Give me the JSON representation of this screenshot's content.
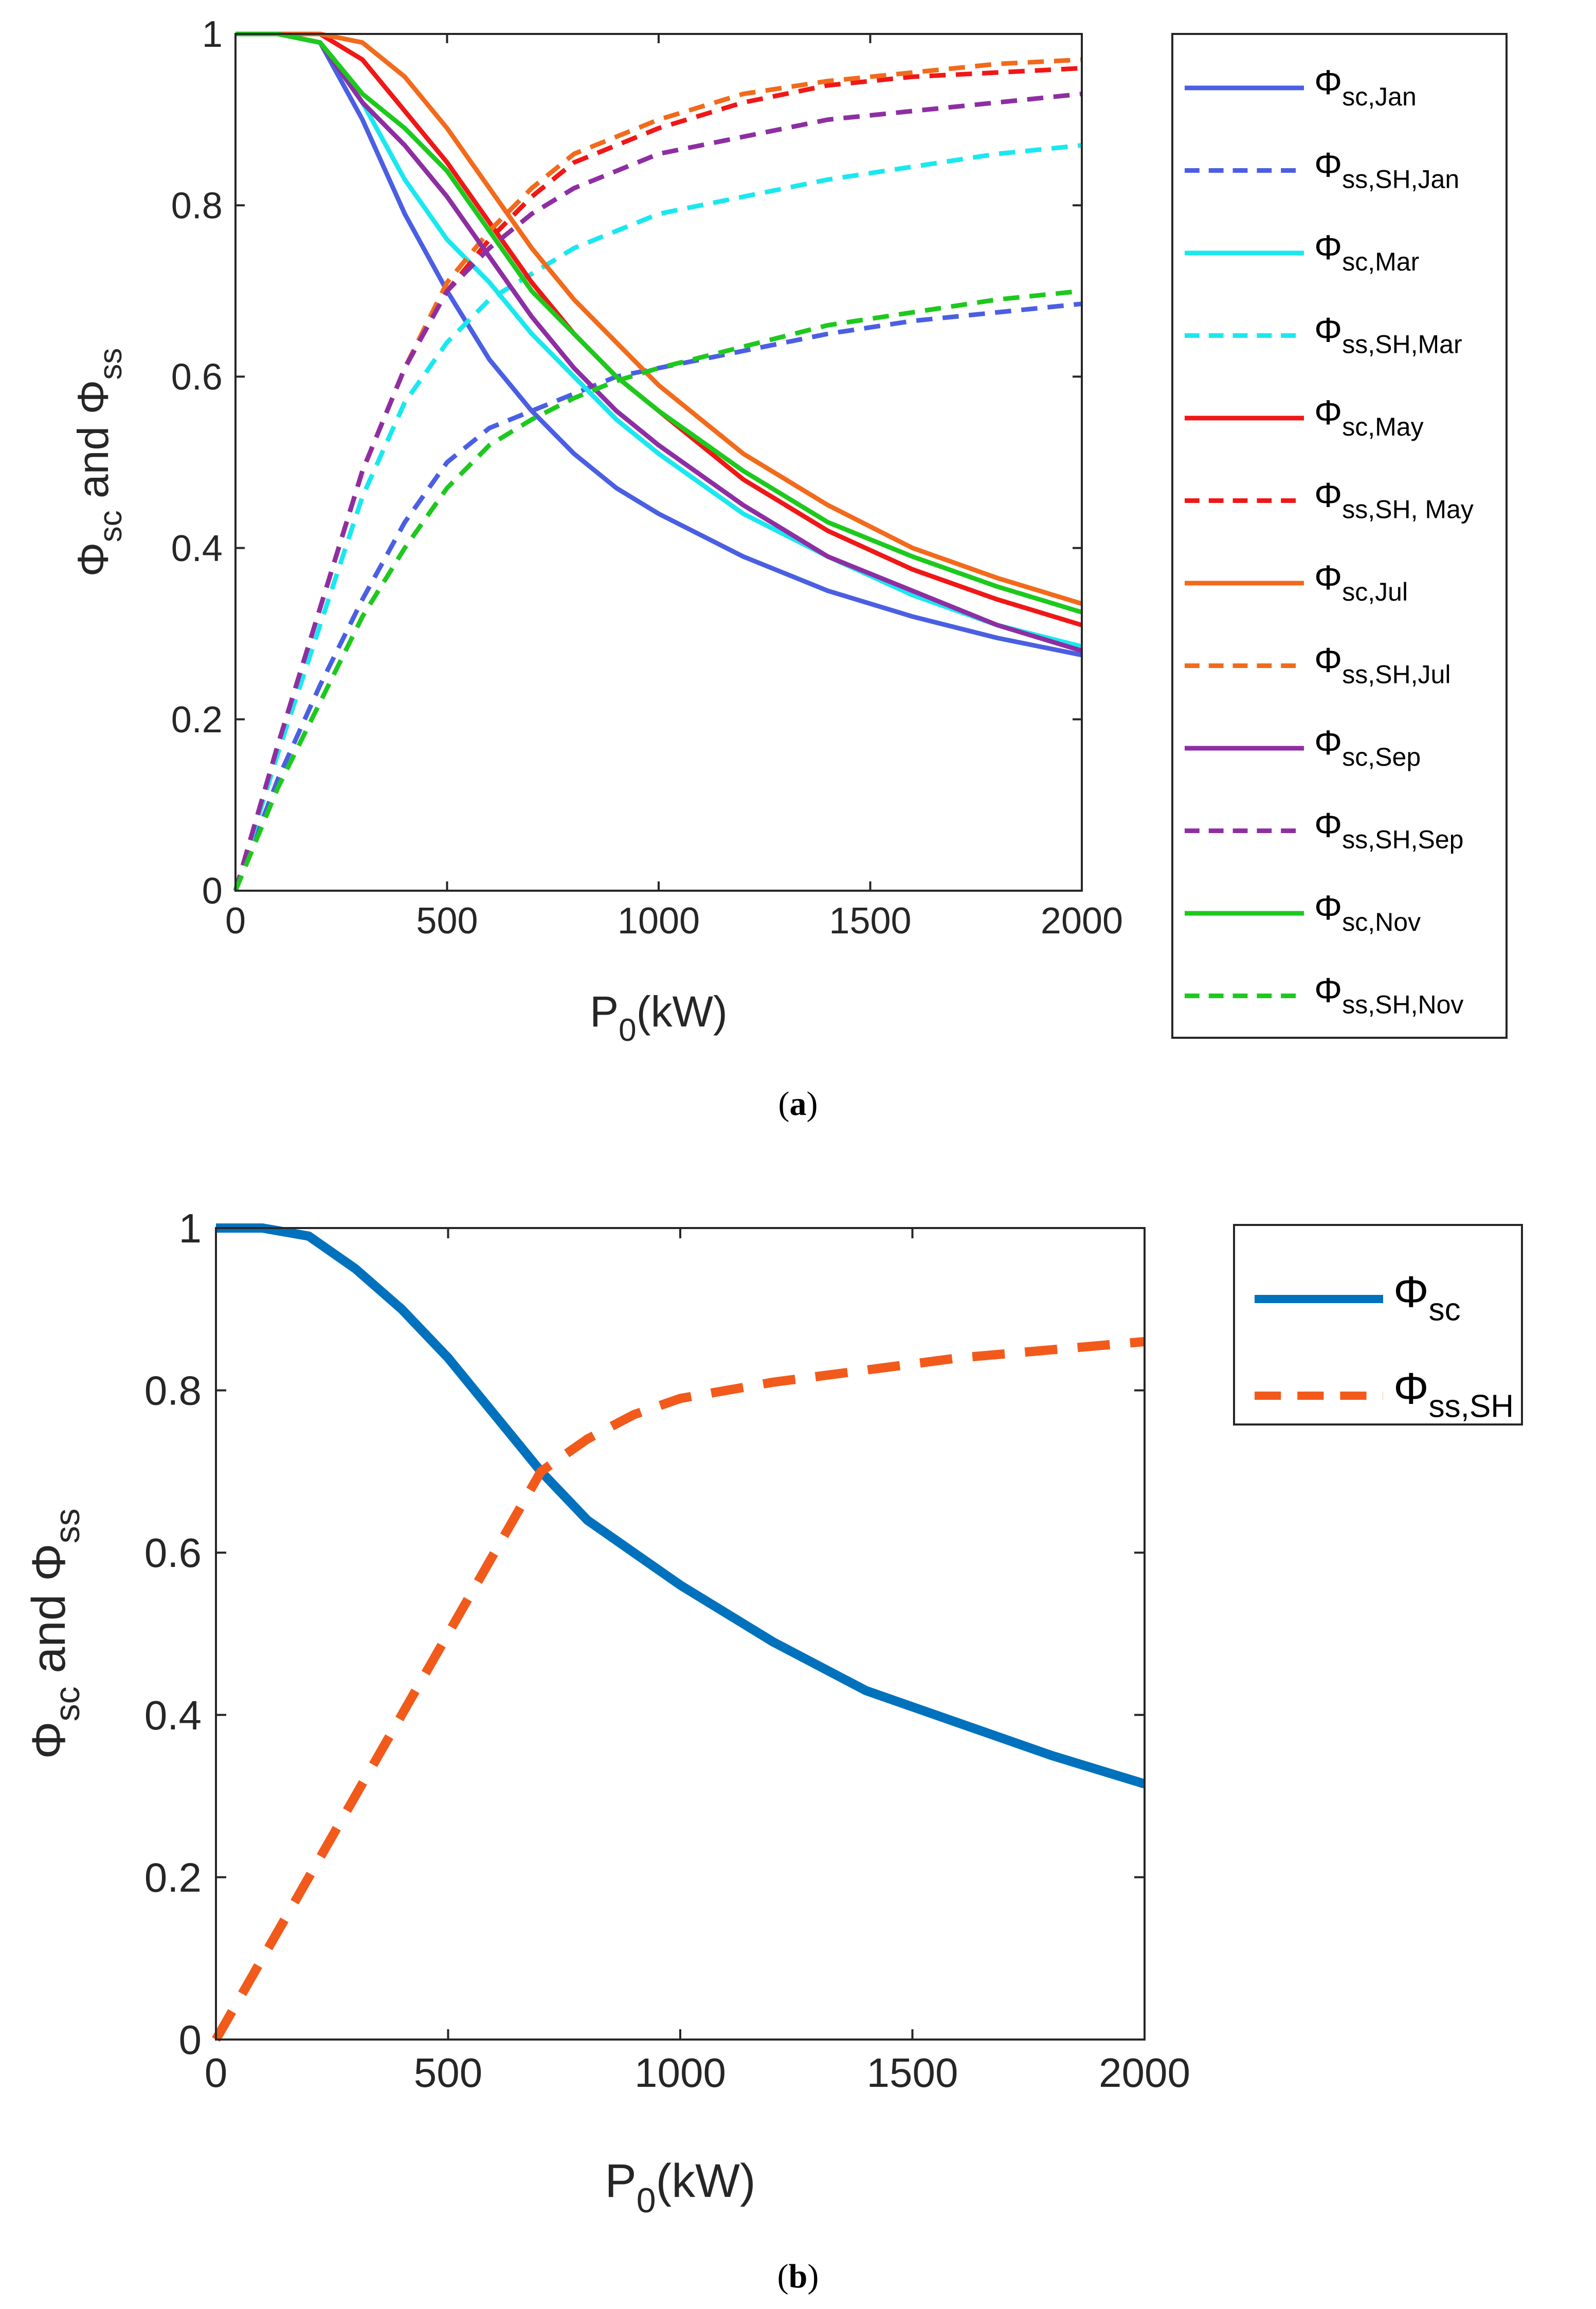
{
  "chart_data": [
    {
      "id": "a",
      "type": "line",
      "caption": "a",
      "xlabel": "P",
      "xlabel_sub": "0",
      "xlabel_unit": "(kW)",
      "ylabel": {
        "p1": "Φ",
        "s1": "sc",
        "mid": " and Φ",
        "s2": "ss"
      },
      "xlim": [
        0,
        2000
      ],
      "ylim": [
        0,
        1
      ],
      "xticks": [
        "0",
        "500",
        "1000",
        "1500",
        "2000"
      ],
      "yticks": [
        "0",
        "0.2",
        "0.4",
        "0.6",
        "0.8",
        "1"
      ],
      "xtick_values": [
        0,
        500,
        1000,
        1500,
        2000
      ],
      "ytick_values": [
        0,
        0.2,
        0.4,
        0.6,
        0.8,
        1
      ],
      "grid": false,
      "legend_position": "outside-right",
      "series": [
        {
          "name": "Φsc,Jan",
          "label_sub": "sc,Jan",
          "color": "#4A5FE3",
          "dash": "solid",
          "x": [
            0,
            100,
            200,
            300,
            400,
            500,
            600,
            700,
            800,
            900,
            1000,
            1200,
            1400,
            1600,
            1800,
            2000
          ],
          "y": [
            1.0,
            1.0,
            0.99,
            0.9,
            0.79,
            0.7,
            0.62,
            0.56,
            0.51,
            0.47,
            0.44,
            0.39,
            0.35,
            0.32,
            0.295,
            0.275
          ]
        },
        {
          "name": "Φss,SH,Jan",
          "label_sub": "ss,SH,Jan",
          "color": "#4A5FE3",
          "dash": "dashed",
          "x": [
            0,
            100,
            200,
            300,
            400,
            500,
            600,
            700,
            800,
            900,
            1000,
            1200,
            1400,
            1600,
            1800,
            2000
          ],
          "y": [
            0.0,
            0.13,
            0.24,
            0.34,
            0.43,
            0.5,
            0.54,
            0.56,
            0.58,
            0.6,
            0.61,
            0.63,
            0.65,
            0.665,
            0.675,
            0.685
          ]
        },
        {
          "name": "Φsc,Mar",
          "label_sub": "sc,Mar",
          "color": "#19E8F0",
          "dash": "solid",
          "x": [
            0,
            100,
            200,
            300,
            400,
            500,
            600,
            700,
            800,
            900,
            1000,
            1200,
            1400,
            1600,
            1800,
            2000
          ],
          "y": [
            1.0,
            1.0,
            0.99,
            0.92,
            0.83,
            0.76,
            0.71,
            0.65,
            0.6,
            0.55,
            0.51,
            0.44,
            0.39,
            0.345,
            0.31,
            0.285
          ]
        },
        {
          "name": "Φss,SH,Mar",
          "label_sub": "ss,SH,Mar",
          "color": "#19E8F0",
          "dash": "dashed",
          "x": [
            0,
            100,
            200,
            300,
            400,
            500,
            600,
            700,
            800,
            900,
            1000,
            1200,
            1400,
            1600,
            1800,
            2000
          ],
          "y": [
            0.0,
            0.16,
            0.31,
            0.46,
            0.57,
            0.64,
            0.69,
            0.72,
            0.75,
            0.77,
            0.79,
            0.81,
            0.83,
            0.845,
            0.86,
            0.87
          ]
        },
        {
          "name": "Φsc,May",
          "label_sub": "sc,May",
          "color": "#F01717",
          "dash": "solid",
          "x": [
            0,
            100,
            200,
            300,
            400,
            500,
            600,
            700,
            800,
            900,
            1000,
            1200,
            1400,
            1600,
            1800,
            2000
          ],
          "y": [
            1.0,
            1.0,
            1.0,
            0.97,
            0.91,
            0.85,
            0.78,
            0.71,
            0.65,
            0.6,
            0.56,
            0.48,
            0.42,
            0.375,
            0.34,
            0.31
          ]
        },
        {
          "name": "Φss,SH, May",
          "label_sub": "ss,SH, May",
          "color": "#F01717",
          "dash": "dashed",
          "x": [
            0,
            100,
            200,
            300,
            400,
            500,
            600,
            700,
            800,
            900,
            1000,
            1200,
            1400,
            1600,
            1800,
            2000
          ],
          "y": [
            0.0,
            0.17,
            0.33,
            0.49,
            0.61,
            0.7,
            0.76,
            0.81,
            0.85,
            0.87,
            0.89,
            0.92,
            0.94,
            0.95,
            0.955,
            0.96
          ]
        },
        {
          "name": "Φsc,Jul",
          "label_sub": "sc,Jul",
          "color": "#F26A1B",
          "dash": "solid",
          "x": [
            0,
            100,
            200,
            300,
            400,
            500,
            600,
            700,
            800,
            900,
            1000,
            1200,
            1400,
            1600,
            1800,
            2000
          ],
          "y": [
            1.0,
            1.0,
            1.0,
            0.99,
            0.95,
            0.89,
            0.82,
            0.75,
            0.69,
            0.64,
            0.59,
            0.51,
            0.45,
            0.4,
            0.365,
            0.335
          ]
        },
        {
          "name": "Φss,SH,Jul",
          "label_sub": "ss,SH,Jul",
          "color": "#F26A1B",
          "dash": "dashed",
          "x": [
            0,
            100,
            200,
            300,
            400,
            500,
            600,
            700,
            800,
            900,
            1000,
            1200,
            1400,
            1600,
            1800,
            2000
          ],
          "y": [
            0.0,
            0.17,
            0.33,
            0.49,
            0.61,
            0.71,
            0.77,
            0.82,
            0.86,
            0.88,
            0.9,
            0.93,
            0.945,
            0.955,
            0.965,
            0.97
          ]
        },
        {
          "name": "Φsc,Sep",
          "label_sub": "sc,Sep",
          "color": "#8E2EA3",
          "dash": "solid",
          "x": [
            0,
            100,
            200,
            300,
            400,
            500,
            600,
            700,
            800,
            900,
            1000,
            1200,
            1400,
            1600,
            1800,
            2000
          ],
          "y": [
            1.0,
            1.0,
            0.99,
            0.92,
            0.87,
            0.81,
            0.74,
            0.67,
            0.61,
            0.56,
            0.52,
            0.45,
            0.39,
            0.35,
            0.31,
            0.28
          ]
        },
        {
          "name": "Φss,SH,Sep",
          "label_sub": "ss,SH,Sep",
          "color": "#8E2EA3",
          "dash": "dashed",
          "x": [
            0,
            100,
            200,
            300,
            400,
            500,
            600,
            700,
            800,
            900,
            1000,
            1200,
            1400,
            1600,
            1800,
            2000
          ],
          "y": [
            0.0,
            0.17,
            0.33,
            0.49,
            0.61,
            0.7,
            0.75,
            0.79,
            0.82,
            0.84,
            0.86,
            0.88,
            0.9,
            0.91,
            0.92,
            0.93
          ]
        },
        {
          "name": "Φsc,Nov",
          "label_sub": "sc,Nov",
          "color": "#1DC91D",
          "dash": "solid",
          "x": [
            0,
            100,
            200,
            300,
            400,
            500,
            600,
            700,
            800,
            900,
            1000,
            1200,
            1400,
            1600,
            1800,
            2000
          ],
          "y": [
            1.0,
            1.0,
            0.99,
            0.93,
            0.89,
            0.84,
            0.77,
            0.7,
            0.65,
            0.6,
            0.56,
            0.49,
            0.43,
            0.39,
            0.355,
            0.325
          ]
        },
        {
          "name": "Φss,SH,Nov",
          "label_sub": "ss,SH,Nov",
          "color": "#1DC91D",
          "dash": "dashed",
          "x": [
            0,
            100,
            200,
            300,
            400,
            500,
            600,
            700,
            800,
            900,
            1000,
            1200,
            1400,
            1600,
            1800,
            2000
          ],
          "y": [
            0.0,
            0.12,
            0.22,
            0.32,
            0.4,
            0.47,
            0.52,
            0.55,
            0.575,
            0.595,
            0.61,
            0.635,
            0.66,
            0.675,
            0.69,
            0.7
          ]
        }
      ]
    },
    {
      "id": "b",
      "type": "line",
      "caption": "b",
      "xlabel": "P",
      "xlabel_sub": "0",
      "xlabel_unit": "(kW)",
      "ylabel": {
        "p1": "Φ",
        "s1": "sc",
        "mid": " and Φ",
        "s2": "ss"
      },
      "xlim": [
        0,
        2000
      ],
      "ylim": [
        0,
        1
      ],
      "xticks": [
        "0",
        "500",
        "1000",
        "1500",
        "2000"
      ],
      "yticks": [
        "0",
        "0.2",
        "0.4",
        "0.6",
        "0.8",
        "1"
      ],
      "xtick_values": [
        0,
        500,
        1000,
        1500,
        2000
      ],
      "ytick_values": [
        0,
        0.2,
        0.4,
        0.6,
        0.8,
        1
      ],
      "grid": false,
      "legend_position": "outside-right",
      "series": [
        {
          "name": "Φsc",
          "label_sub": "sc",
          "color": "#0072BD",
          "dash": "solid",
          "x": [
            0,
            100,
            200,
            300,
            400,
            500,
            600,
            700,
            800,
            900,
            1000,
            1200,
            1400,
            1600,
            1800,
            2000
          ],
          "y": [
            1.0,
            1.0,
            0.99,
            0.95,
            0.9,
            0.84,
            0.77,
            0.7,
            0.64,
            0.6,
            0.56,
            0.49,
            0.43,
            0.39,
            0.35,
            0.315
          ]
        },
        {
          "name": "Φss,SH",
          "label_sub": "ss,SH",
          "color": "#F25A1B",
          "dash": "dashed",
          "x": [
            0,
            100,
            200,
            300,
            400,
            500,
            600,
            700,
            800,
            900,
            1000,
            1200,
            1400,
            1600,
            1800,
            2000
          ],
          "y": [
            0.0,
            0.1,
            0.2,
            0.3,
            0.4,
            0.5,
            0.6,
            0.7,
            0.74,
            0.77,
            0.79,
            0.81,
            0.825,
            0.84,
            0.85,
            0.86
          ]
        }
      ]
    }
  ]
}
